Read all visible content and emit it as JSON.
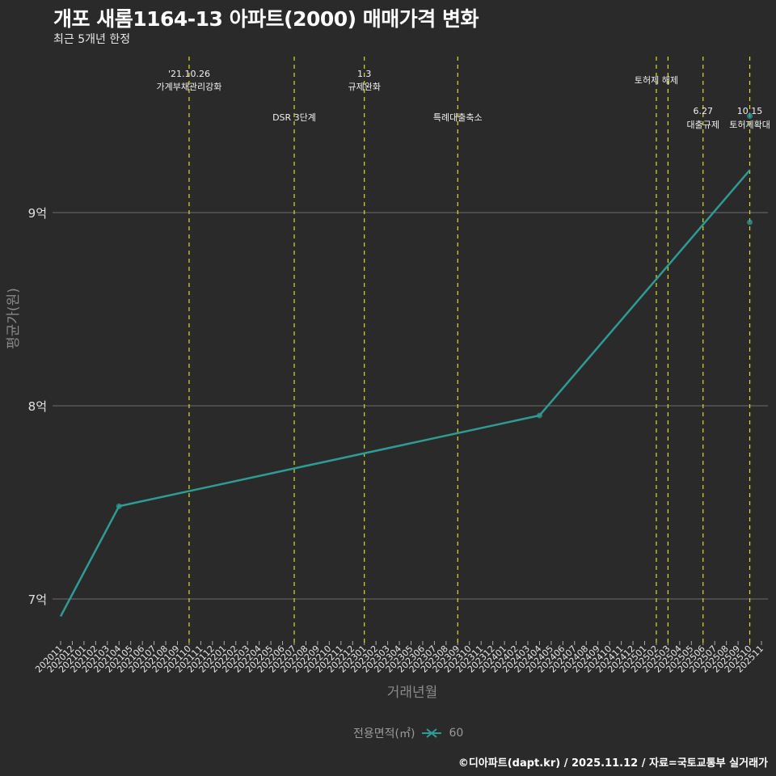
{
  "header": {
    "title": "개포 새롬1164-13 아파트(2000) 매매가격 변화",
    "subtitle": "최근 5개년 한정"
  },
  "axes": {
    "ylabel": "평균가(원)",
    "xlabel": "거래년월",
    "yticks": [
      "7억",
      "8억",
      "9억"
    ]
  },
  "legend": {
    "title": "전용면적(㎡)",
    "items": [
      {
        "label": "60",
        "color": "#2e9b94",
        "icon": "cross-line-icon"
      }
    ]
  },
  "footer": "©디아파트(dapt.kr) / 2025.11.12 / 자료=국토교통부 실거래가",
  "colors": {
    "background": "#2b2a2a",
    "series": "#2e9b94",
    "event_line": "#d4e021",
    "grid": "#6e6e6e"
  },
  "chart_data": {
    "type": "line",
    "title": "개포 새롬1164-13 아파트(2000) 매매가격 변화",
    "subtitle": "최근 5개년 한정",
    "xlabel": "거래년월",
    "ylabel": "평균가(원)",
    "ylim": [
      6.8,
      9.95
    ],
    "yunit": "억",
    "x_categories": [
      "202011",
      "202012",
      "202101",
      "202102",
      "202103",
      "202104",
      "202105",
      "202106",
      "202107",
      "202108",
      "202109",
      "202110",
      "202111",
      "202112",
      "202201",
      "202202",
      "202203",
      "202204",
      "202205",
      "202206",
      "202207",
      "202208",
      "202209",
      "202210",
      "202211",
      "202212",
      "202301",
      "202302",
      "202303",
      "202304",
      "202305",
      "202306",
      "202307",
      "202308",
      "202309",
      "202310",
      "202311",
      "202312",
      "202401",
      "202402",
      "202403",
      "202404",
      "202405",
      "202406",
      "202407",
      "202408",
      "202409",
      "202410",
      "202411",
      "202412",
      "202501",
      "202502",
      "202503",
      "202504",
      "202505",
      "202506",
      "202507",
      "202508",
      "202509",
      "202510",
      "202511"
    ],
    "series": [
      {
        "name": "60",
        "line_points": [
          {
            "x": "202011",
            "y": 6.91
          },
          {
            "x": "202104",
            "y": 7.48
          },
          {
            "x": "202404",
            "y": 7.95
          },
          {
            "x": "202510",
            "y": 9.22
          }
        ],
        "scatter_points": [
          {
            "x": "202104",
            "y": 7.48
          },
          {
            "x": "202404",
            "y": 7.95
          },
          {
            "x": "202510",
            "y": 9.5
          },
          {
            "x": "202510",
            "y": 8.95
          }
        ]
      }
    ],
    "events": [
      {
        "x": "202110",
        "label_top": "'21.10.26",
        "label": "가계부채관리강화",
        "row": 1
      },
      {
        "x": "202207",
        "label_top": "",
        "label": "DSR 3단계",
        "row": 2
      },
      {
        "x": "202301",
        "label_top": "1.3",
        "label": "규제완화",
        "row": 1
      },
      {
        "x": "202309",
        "label_top": "",
        "label": "특례대출축소",
        "row": 2
      },
      {
        "x": "202502",
        "label_top": "",
        "label": "토허제 해제",
        "row": 1
      },
      {
        "x": "202503",
        "label_top": "",
        "label": "",
        "row": 1
      },
      {
        "x": "202506",
        "label_top": "6.27",
        "label": "대출규제",
        "row": 2
      },
      {
        "x": "202510",
        "label_top": "10.15",
        "label": "토허제확대",
        "row": 2
      }
    ],
    "grid": true,
    "legend_position": "bottom"
  }
}
